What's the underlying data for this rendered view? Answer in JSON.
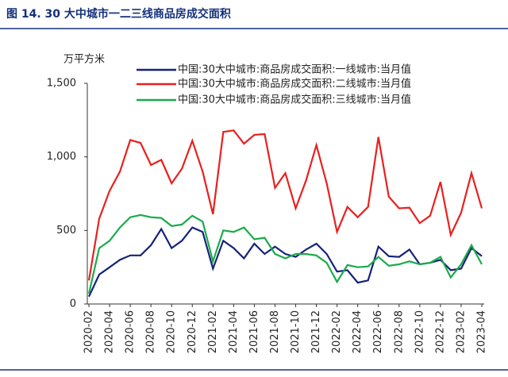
{
  "chart_data": {
    "type": "line",
    "title": "图 14. 30 大中城市一二三线商品房成交面积",
    "ylabel": "万平方米",
    "categories": [
      "2020-02",
      null,
      "2020-04",
      null,
      "2020-06",
      null,
      "2020-08",
      null,
      "2020-10",
      null,
      "2020-12",
      null,
      "2021-02",
      null,
      "2021-04",
      null,
      "2021-06",
      null,
      "2021-08",
      null,
      "2021-10",
      null,
      "2021-12",
      null,
      "2022-02",
      null,
      "2022-04",
      null,
      "2022-06",
      null,
      "2022-08",
      null,
      "2022-10",
      null,
      "2022-12",
      null,
      "2023-02",
      null,
      "2023-04"
    ],
    "series": [
      {
        "name": "中国:30大中城市:商品房成交面积:一线城市:当月值",
        "color": "#16227a",
        "values": [
          50,
          200,
          250,
          300,
          330,
          330,
          400,
          510,
          380,
          430,
          520,
          490,
          240,
          430,
          380,
          310,
          410,
          340,
          390,
          340,
          320,
          370,
          410,
          340,
          220,
          230,
          145,
          160,
          390,
          325,
          320,
          370,
          270,
          280,
          300,
          230,
          240,
          380,
          325
        ]
      },
      {
        "name": "中国:30大中城市:商品房成交面积:二线城市:当月值",
        "color": "#e8201e",
        "values": [
          160,
          580,
          770,
          900,
          1115,
          1095,
          945,
          980,
          820,
          920,
          1110,
          900,
          610,
          1170,
          1180,
          1090,
          1150,
          1155,
          790,
          890,
          650,
          840,
          1080,
          820,
          490,
          660,
          590,
          660,
          1135,
          730,
          650,
          655,
          550,
          600,
          830,
          470,
          620,
          890,
          650
        ]
      },
      {
        "name": "中国:30大中城市:商品房成交面积:三线城市:当月值",
        "color": "#1aab4b",
        "values": [
          70,
          380,
          430,
          520,
          590,
          605,
          590,
          585,
          530,
          540,
          600,
          560,
          290,
          500,
          490,
          520,
          440,
          450,
          340,
          310,
          340,
          340,
          330,
          280,
          150,
          265,
          250,
          255,
          320,
          260,
          270,
          290,
          270,
          280,
          320,
          180,
          270,
          400,
          270
        ]
      }
    ],
    "ylim": [
      0,
      1500
    ],
    "yticks": [
      0,
      500,
      {
        "value": 1000,
        "label": "1,000"
      },
      {
        "value": 1500,
        "label": "1,500"
      }
    ],
    "legend": "upper center",
    "grid": false
  }
}
